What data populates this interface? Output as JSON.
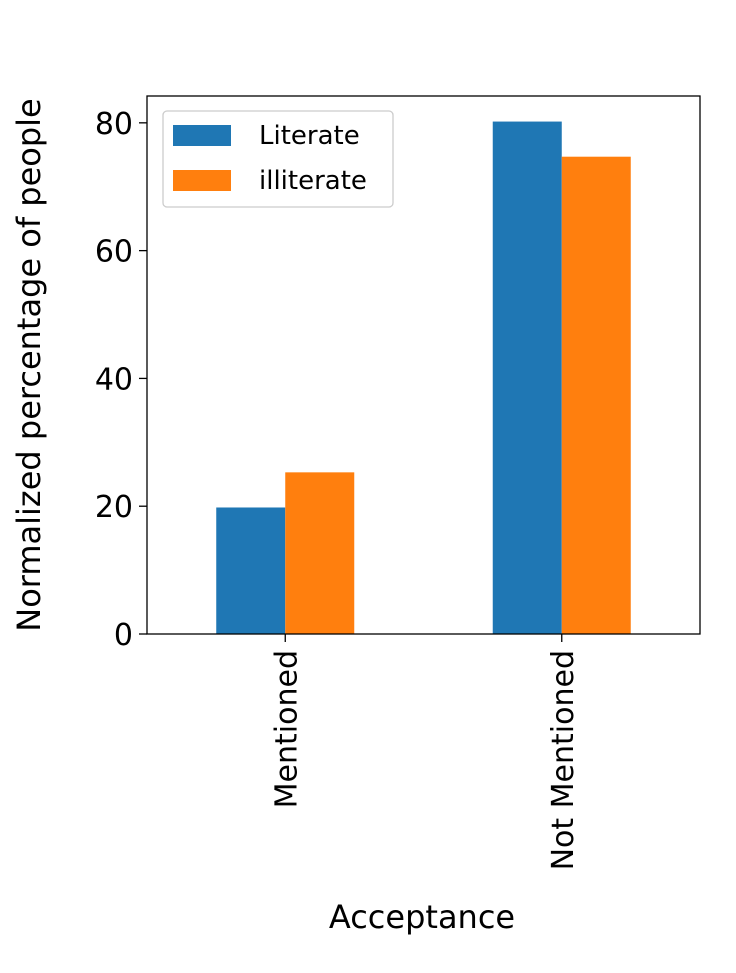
{
  "chart_data": {
    "type": "bar",
    "categories": [
      "Mentioned",
      "Not Mentioned"
    ],
    "series": [
      {
        "name": "Literate",
        "values": [
          19.8,
          80.2
        ],
        "color": "#1f77b4"
      },
      {
        "name": "illiterate",
        "values": [
          25.3,
          74.7
        ],
        "color": "#ff7f0e"
      }
    ],
    "title": "",
    "xlabel": "Acceptance",
    "ylabel": "Normalized percentage of people",
    "ylim": [
      0,
      84.2
    ],
    "yticks": [
      0,
      20,
      40,
      60,
      80
    ],
    "grid": false,
    "legend": "top-left"
  }
}
